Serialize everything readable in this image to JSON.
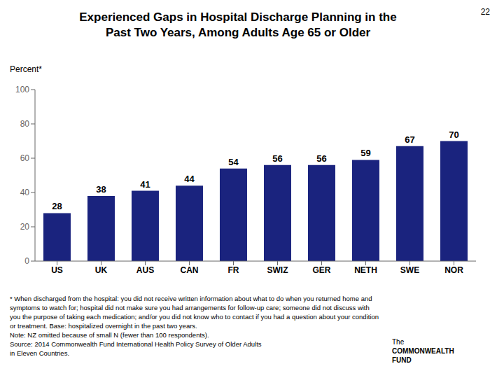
{
  "chart_data": {
    "type": "bar",
    "title": "Experienced Gaps in Hospital Discharge Planning in the\nPast Two Years, Among Adults Age 65 or Older",
    "ylabel": "Percent*",
    "categories": [
      "US",
      "UK",
      "AUS",
      "CAN",
      "FR",
      "SWIZ",
      "GER",
      "NETH",
      "SWE",
      "NOR"
    ],
    "values": [
      28,
      38,
      41,
      44,
      54,
      56,
      56,
      59,
      67,
      70
    ],
    "color": "#1a237e",
    "ylim": [
      0,
      100
    ],
    "yticks": [
      0,
      20,
      40,
      60,
      80,
      100
    ],
    "grid": false,
    "data_labels": true,
    "annotations": [
      "22",
      "* When discharged from the hospital: you did not receive written information about what to do when you returned home and",
      "symptoms to watch for; hospital did not make sure you had arrangements for follow-up care; someone did not discuss with",
      "you the purpose of taking each medication; and/or you did not know who to contact if you had a question about your condition",
      "or treatment. Base: hospitalized overnight in the past two years.",
      "Note: NZ omitted because of small N (fewer than 100 respondents).",
      "Source: 2014 Commonwealth Fund International Health Policy Survey of Older Adults",
      "in Eleven Countries.",
      "The",
      "COMMONWEALTH",
      "FUND"
    ]
  }
}
